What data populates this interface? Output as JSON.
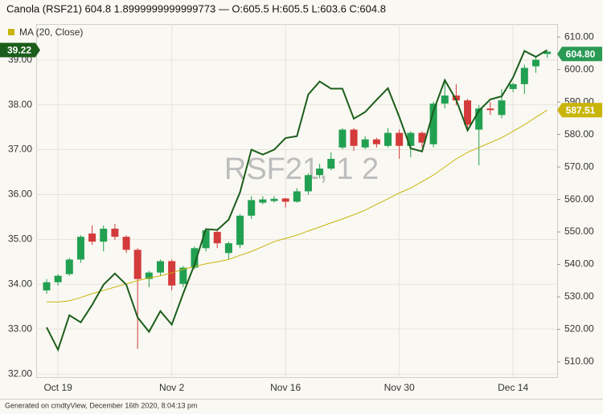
{
  "chart_data": {
    "type": "candlestick",
    "title": "Canola (RSF21) 604.8 1.8999999999999773 — O:605.5 H:605.5 L:603.6 C:604.8",
    "watermark": "RSF21, 1 2",
    "footer": "Generated on cmdtyView, December 16th 2020, 8:04:13 pm",
    "categories": [
      null,
      "Oct 19",
      null,
      null,
      null,
      null,
      null,
      null,
      null,
      null,
      null,
      "Nov 2",
      null,
      null,
      null,
      null,
      null,
      null,
      null,
      null,
      null,
      "Nov 16",
      null,
      null,
      null,
      null,
      null,
      null,
      null,
      null,
      null,
      "Nov 30",
      null,
      null,
      null,
      null,
      null,
      null,
      null,
      null,
      null,
      "Dec 14",
      null,
      null,
      null
    ],
    "ylim": [
      31.93,
      39.8
    ],
    "yticks": [
      {
        "value": 32,
        "label": "32.00"
      },
      {
        "value": 33,
        "label": "33.00"
      },
      {
        "value": 34,
        "label": "34.00"
      },
      {
        "value": 35,
        "label": "35.00"
      },
      {
        "value": 36,
        "label": "36.00"
      },
      {
        "value": 37,
        "label": "37.00"
      },
      {
        "value": 38,
        "label": "38.00"
      },
      {
        "value": 39,
        "label": "39.00"
      }
    ],
    "y2lim": [
      505.3,
      614
    ],
    "y2ticks": [
      {
        "value": 510,
        "label": "510.00"
      },
      {
        "value": 520,
        "label": "520.00"
      },
      {
        "value": 530,
        "label": "530.00"
      },
      {
        "value": 540,
        "label": "540.00"
      },
      {
        "value": 550,
        "label": "550.00"
      },
      {
        "value": 560,
        "label": "560.00"
      },
      {
        "value": 570,
        "label": "570.00"
      },
      {
        "value": 580,
        "label": "580.00"
      },
      {
        "value": 590,
        "label": "590.00"
      },
      {
        "value": 600,
        "label": "600.00"
      },
      {
        "value": 610,
        "label": "610.00"
      }
    ],
    "grid": true,
    "candles": {
      "axis": "y2",
      "up_color": "#22a052",
      "down_color": "#d33a3a",
      "label_color": "#2a9a55",
      "last_label": "604.80",
      "open": [
        532,
        534.5,
        537,
        541.5,
        549.5,
        547,
        551,
        548.5,
        544.5,
        535.5,
        537.5,
        541,
        534,
        539,
        545,
        550,
        543.5,
        546,
        555,
        559,
        559.5,
        560.3,
        559.3,
        562.5,
        567.5,
        569.5,
        576,
        581.5,
        576,
        578.5,
        576.5,
        580.5,
        576.5,
        580.5,
        577,
        589.5,
        592,
        590.5,
        581.5,
        588,
        586,
        594,
        595.5,
        601,
        605.5
      ],
      "high": [
        535.5,
        537,
        542,
        549,
        552,
        552,
        552.5,
        549,
        545,
        538,
        541.5,
        541.5,
        539.5,
        545.5,
        551,
        551,
        547,
        555.5,
        561,
        561,
        561,
        560.5,
        563.5,
        568,
        571,
        574.5,
        582,
        582,
        579.5,
        579,
        582,
        581.5,
        581,
        581,
        590,
        597,
        595.5,
        591,
        589,
        590,
        594,
        596,
        601.5,
        604,
        605.5
      ],
      "low": [
        531,
        533.5,
        536.5,
        540.5,
        546,
        544,
        547.5,
        543.5,
        514,
        533,
        536.5,
        532,
        533,
        538.5,
        544,
        545,
        541.5,
        545,
        554,
        558.5,
        559,
        557.5,
        559,
        561.5,
        566.5,
        569,
        575.5,
        575,
        575.5,
        576,
        576,
        572.5,
        573,
        576,
        576,
        588,
        589,
        581,
        570.5,
        586,
        585,
        593,
        592.5,
        599,
        603.6
      ],
      "close": [
        534.5,
        536.5,
        541.5,
        548.5,
        547,
        551,
        548.5,
        544.5,
        535.5,
        537.5,
        541,
        533.5,
        539,
        545,
        550.5,
        546.5,
        546.5,
        555,
        559.8,
        560,
        560.2,
        559.3,
        562.5,
        567.5,
        569.5,
        572.5,
        581.5,
        576.5,
        578.5,
        577,
        580.5,
        576.5,
        580.5,
        577.5,
        589.5,
        592,
        590.5,
        583,
        588,
        587.5,
        590.5,
        595.5,
        600.5,
        603,
        604.8
      ]
    },
    "series": [
      {
        "name": "MA (20, Close)",
        "axis": "y2",
        "color": "#c9b50a",
        "last_label": "587.51",
        "values": [
          528.5,
          528.4,
          528.8,
          529.8,
          531,
          532,
          533,
          534,
          535,
          535.8,
          536.5,
          537.4,
          538.5,
          539.3,
          540.2,
          540.8,
          541.5,
          542.8,
          544,
          545.5,
          547,
          548,
          549,
          550.3,
          551.5,
          552.8,
          554,
          555.3,
          556.7,
          558.5,
          560.2,
          562,
          563.5,
          565.5,
          567.5,
          570,
          572.5,
          574.5,
          576,
          577.5,
          579,
          581,
          583,
          585.3,
          587.51
        ]
      },
      {
        "axis": "y",
        "color": "#1b5e1b",
        "last_label": "39.22",
        "values": [
          33.04,
          32.54,
          33.31,
          33.15,
          33.54,
          33.99,
          34.24,
          33.99,
          33.26,
          32.94,
          33.4,
          33.1,
          33.79,
          34.44,
          35.23,
          35.21,
          35.44,
          36.05,
          37.0,
          36.89,
          37.0,
          37.26,
          37.3,
          38.23,
          38.52,
          38.36,
          38.36,
          37.69,
          37.84,
          38.11,
          38.37,
          37.73,
          37.03,
          36.96,
          37.86,
          38.55,
          38.11,
          37.43,
          37.87,
          38.12,
          38.19,
          38.61,
          39.2,
          39.07,
          39.22
        ]
      }
    ]
  }
}
